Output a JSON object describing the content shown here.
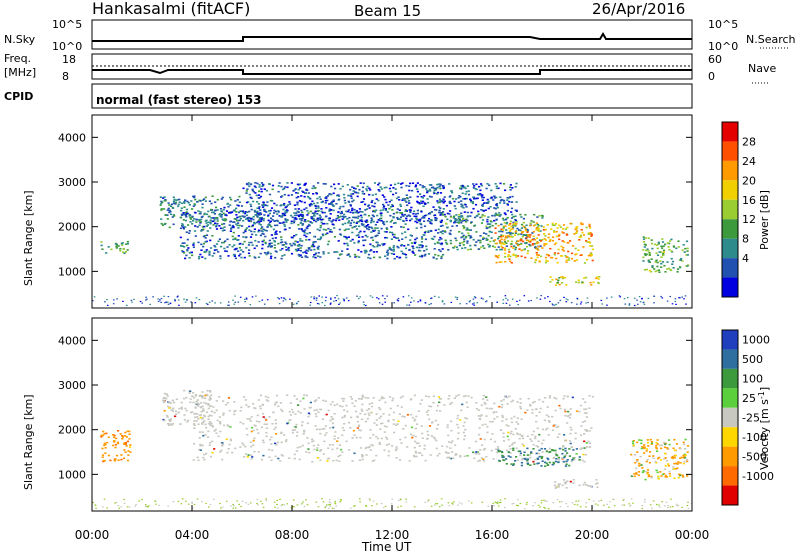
{
  "header": {
    "station": "Hankasalmi (fitACF)",
    "beam": "Beam 15",
    "date": "26/Apr/2016"
  },
  "panels": {
    "nsky": {
      "left_label": "N.Sky",
      "left_ticks": [
        "10^5",
        "10^0"
      ],
      "right_label": "N.Search",
      "right_ticks": [
        "10^5",
        "10^0"
      ]
    },
    "freq": {
      "left_label_top": "Freq.",
      "left_label_bottom": "[MHz]",
      "left_ticks": [
        "18",
        "8"
      ],
      "right_label": "Nave",
      "right_ticks": [
        "60",
        "0"
      ]
    },
    "cpid": {
      "left_label": "CPID",
      "program": "normal (fast stereo) 153"
    }
  },
  "axes": {
    "ylabel": "Slant Range [km]",
    "yticks": [
      "4000",
      "3000",
      "2000",
      "1000"
    ],
    "xticks": [
      "00:00",
      "04:00",
      "08:00",
      "12:00",
      "16:00",
      "20:00",
      "00:00"
    ],
    "xlabel": "Time UT"
  },
  "colorbars": {
    "power": {
      "label": "Power [dB]",
      "ticks": [
        "28",
        "24",
        "20",
        "16",
        "12",
        "8",
        "4"
      ],
      "colors": [
        "#e50000",
        "#ff5000",
        "#ff9a00",
        "#f0d000",
        "#9acd32",
        "#3c9a3c",
        "#2e8b8b",
        "#2050b0",
        "#0000e0"
      ]
    },
    "velocity": {
      "label": "Velocity [m s^-1]",
      "ticks": [
        "1000",
        "500",
        "100",
        "25",
        "-25",
        "-100",
        "-500",
        "-1000"
      ],
      "colors": [
        "#1f3fbf",
        "#2f6f9f",
        "#3c9a3c",
        "#5ccf3c",
        "#c8c8c0",
        "#ffd700",
        "#ff9a00",
        "#ff6a00",
        "#e00000"
      ]
    }
  },
  "chart_data": [
    {
      "type": "heatmap",
      "title": "Power",
      "x_range": [
        "00:00",
        "24:00"
      ],
      "ylim": [
        180,
        4500
      ],
      "bands": [
        {
          "from": 0.3,
          "to": 1.4,
          "range": [
            1400,
            1700
          ],
          "power": 14
        },
        {
          "from": 2.7,
          "to": 6.0,
          "range": [
            2000,
            2700
          ],
          "power": 10
        },
        {
          "from": 3.5,
          "to": 14.0,
          "range": [
            1300,
            2400
          ],
          "power": 8
        },
        {
          "from": 6.0,
          "to": 17.0,
          "range": [
            2100,
            3000
          ],
          "power": 7
        },
        {
          "from": 14.0,
          "to": 18.0,
          "range": [
            1500,
            2300
          ],
          "power": 12
        },
        {
          "from": 16.0,
          "to": 20.0,
          "range": [
            1200,
            2100
          ],
          "power": 22
        },
        {
          "from": 18.2,
          "to": 20.3,
          "range": [
            700,
            900
          ],
          "power": 18
        },
        {
          "from": 22.0,
          "to": 23.8,
          "range": [
            1000,
            1800
          ],
          "power": 14
        }
      ]
    },
    {
      "type": "heatmap",
      "title": "Velocity",
      "x_range": [
        "00:00",
        "24:00"
      ],
      "ylim": [
        180,
        4500
      ],
      "bands": [
        {
          "from": 0.3,
          "to": 1.5,
          "range": [
            1300,
            2000
          ],
          "velocity": -200
        },
        {
          "from": 2.8,
          "to": 4.8,
          "range": [
            2100,
            2900
          ],
          "velocity": 0
        },
        {
          "from": 4.0,
          "to": 20.0,
          "range": [
            1300,
            2800
          ],
          "velocity": 0
        },
        {
          "from": 16.2,
          "to": 19.5,
          "range": [
            1200,
            1600
          ],
          "velocity": 300
        },
        {
          "from": 18.2,
          "to": 20.2,
          "range": [
            700,
            900
          ],
          "velocity": 0
        },
        {
          "from": 21.5,
          "to": 23.8,
          "range": [
            900,
            1800
          ],
          "velocity": -80
        }
      ]
    }
  ]
}
